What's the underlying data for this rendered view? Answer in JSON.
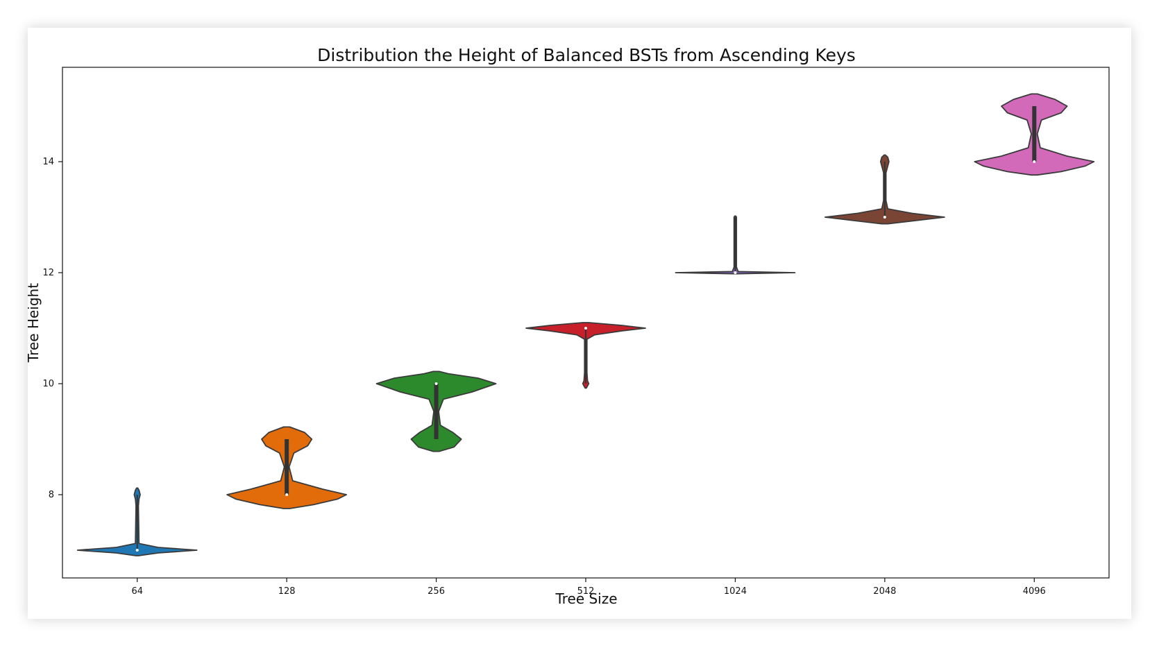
{
  "chart_data": {
    "type": "violin",
    "title": "Distribution the Height of Balanced BSTs from Ascending Keys",
    "xlabel": "Tree Size",
    "ylabel": "Tree Height",
    "categories": [
      "64",
      "128",
      "256",
      "512",
      "1024",
      "2048",
      "4096"
    ],
    "ylim": [
      6.5,
      15.7
    ],
    "yticks": [
      8,
      10,
      12,
      14
    ],
    "grid": false,
    "legend": "none",
    "series": [
      {
        "category": "64",
        "color": "#1f77b4",
        "median": 7,
        "q1": 7,
        "q3": 7,
        "min": 7,
        "max": 8,
        "density": [
          {
            "y": 6.9,
            "w": 0.02
          },
          {
            "y": 6.95,
            "w": 0.35
          },
          {
            "y": 7.0,
            "w": 1.0
          },
          {
            "y": 7.05,
            "w": 0.35
          },
          {
            "y": 7.12,
            "w": 0.03
          },
          {
            "y": 7.8,
            "w": 0.02
          },
          {
            "y": 7.92,
            "w": 0.03
          },
          {
            "y": 8.0,
            "w": 0.05
          },
          {
            "y": 8.08,
            "w": 0.03
          },
          {
            "y": 8.12,
            "w": 0.0
          }
        ]
      },
      {
        "category": "128",
        "color": "#e36c0a",
        "median": 8,
        "q1": 8,
        "q3": 9,
        "min": 8,
        "max": 9,
        "density": [
          {
            "y": 7.75,
            "w": 0.05
          },
          {
            "y": 7.82,
            "w": 0.45
          },
          {
            "y": 7.92,
            "w": 0.85
          },
          {
            "y": 8.0,
            "w": 1.0
          },
          {
            "y": 8.1,
            "w": 0.6
          },
          {
            "y": 8.25,
            "w": 0.1
          },
          {
            "y": 8.5,
            "w": 0.04
          },
          {
            "y": 8.75,
            "w": 0.12
          },
          {
            "y": 8.88,
            "w": 0.35
          },
          {
            "y": 9.0,
            "w": 0.42
          },
          {
            "y": 9.12,
            "w": 0.3
          },
          {
            "y": 9.22,
            "w": 0.05
          }
        ]
      },
      {
        "category": "256",
        "color": "#2c8a2c",
        "median": 10,
        "q1": 9,
        "q3": 10,
        "min": 9,
        "max": 10,
        "density": [
          {
            "y": 8.78,
            "w": 0.05
          },
          {
            "y": 8.86,
            "w": 0.3
          },
          {
            "y": 9.0,
            "w": 0.42
          },
          {
            "y": 9.12,
            "w": 0.28
          },
          {
            "y": 9.25,
            "w": 0.07
          },
          {
            "y": 9.5,
            "w": 0.04
          },
          {
            "y": 9.72,
            "w": 0.12
          },
          {
            "y": 9.85,
            "w": 0.6
          },
          {
            "y": 10.0,
            "w": 1.0
          },
          {
            "y": 10.1,
            "w": 0.7
          },
          {
            "y": 10.18,
            "w": 0.2
          },
          {
            "y": 10.22,
            "w": 0.05
          }
        ]
      },
      {
        "category": "512",
        "color": "#c8202a",
        "median": 11,
        "q1": 11,
        "q3": 11,
        "min": 10,
        "max": 11,
        "density": [
          {
            "y": 9.92,
            "w": 0.0
          },
          {
            "y": 9.96,
            "w": 0.03
          },
          {
            "y": 10.0,
            "w": 0.05
          },
          {
            "y": 10.05,
            "w": 0.03
          },
          {
            "y": 10.2,
            "w": 0.02
          },
          {
            "y": 10.8,
            "w": 0.02
          },
          {
            "y": 10.88,
            "w": 0.15
          },
          {
            "y": 10.95,
            "w": 0.6
          },
          {
            "y": 11.0,
            "w": 1.0
          },
          {
            "y": 11.05,
            "w": 0.6
          },
          {
            "y": 11.1,
            "w": 0.05
          }
        ]
      },
      {
        "category": "1024",
        "color": "#7b5fb0",
        "median": 12,
        "q1": 12,
        "q3": 12,
        "min": 12,
        "max": 13,
        "density": [
          {
            "y": 11.98,
            "w": 0.05
          },
          {
            "y": 12.0,
            "w": 1.0
          },
          {
            "y": 12.02,
            "w": 0.05
          },
          {
            "y": 12.1,
            "w": 0.02
          },
          {
            "y": 13.0,
            "w": 0.02
          },
          {
            "y": 13.02,
            "w": 0.0
          }
        ]
      },
      {
        "category": "2048",
        "color": "#7b4535",
        "median": 13,
        "q1": 13,
        "q3": 13,
        "min": 13,
        "max": 14,
        "density": [
          {
            "y": 12.88,
            "w": 0.05
          },
          {
            "y": 12.93,
            "w": 0.45
          },
          {
            "y": 13.0,
            "w": 1.0
          },
          {
            "y": 13.07,
            "w": 0.45
          },
          {
            "y": 13.15,
            "w": 0.05
          },
          {
            "y": 13.3,
            "w": 0.02
          },
          {
            "y": 13.8,
            "w": 0.02
          },
          {
            "y": 13.92,
            "w": 0.05
          },
          {
            "y": 14.0,
            "w": 0.07
          },
          {
            "y": 14.08,
            "w": 0.05
          },
          {
            "y": 14.12,
            "w": 0.0
          }
        ]
      },
      {
        "category": "4096",
        "color": "#d269b9",
        "median": 14,
        "q1": 14,
        "q3": 15,
        "min": 14,
        "max": 15,
        "density": [
          {
            "y": 13.76,
            "w": 0.05
          },
          {
            "y": 13.82,
            "w": 0.45
          },
          {
            "y": 13.92,
            "w": 0.85
          },
          {
            "y": 14.0,
            "w": 1.0
          },
          {
            "y": 14.1,
            "w": 0.55
          },
          {
            "y": 14.25,
            "w": 0.1
          },
          {
            "y": 14.5,
            "w": 0.05
          },
          {
            "y": 14.75,
            "w": 0.12
          },
          {
            "y": 14.88,
            "w": 0.45
          },
          {
            "y": 15.0,
            "w": 0.55
          },
          {
            "y": 15.12,
            "w": 0.35
          },
          {
            "y": 15.22,
            "w": 0.05
          }
        ]
      }
    ]
  }
}
